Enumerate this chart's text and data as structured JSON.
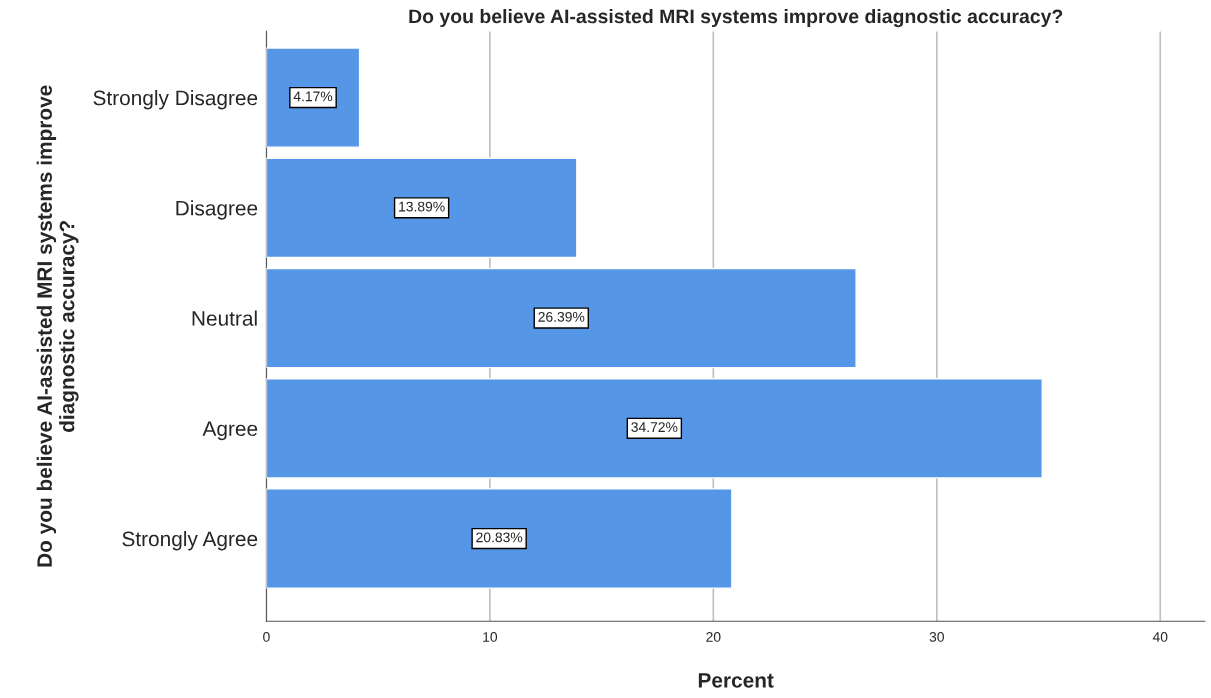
{
  "chart_data": {
    "type": "bar",
    "orientation": "horizontal",
    "title": "Do you believe AI-assisted MRI systems improve diagnostic accuracy?",
    "xlabel": "Percent",
    "ylabel": "Do you believe AI-assisted MRI systems improve\ndiagnostic accuracy?",
    "categories": [
      "Strongly Disagree",
      "Disagree",
      "Neutral",
      "Agree",
      "Strongly Agree"
    ],
    "values": [
      4.17,
      13.89,
      26.39,
      34.72,
      20.83
    ],
    "value_labels": [
      "4.17%",
      "13.89%",
      "26.39%",
      "34.72%",
      "20.83%"
    ],
    "color": "#5596e6",
    "xlim": [
      0,
      42
    ],
    "xticks": [
      0,
      10,
      20,
      30,
      40
    ],
    "grid": "x",
    "legend": false
  }
}
